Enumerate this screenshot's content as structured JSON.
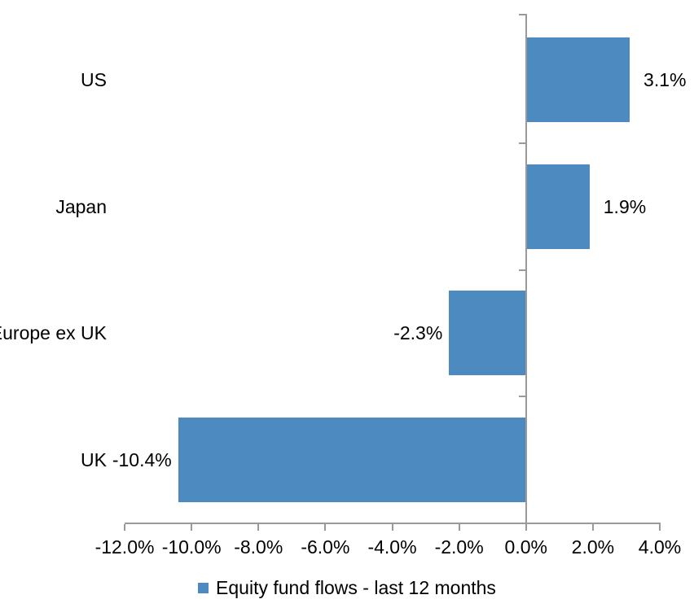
{
  "chart_data": {
    "type": "bar",
    "orientation": "horizontal",
    "title": "",
    "categories": [
      "US",
      "Japan",
      "Europe ex UK",
      "UK"
    ],
    "values": [
      3.1,
      1.9,
      -2.3,
      -10.4
    ],
    "data_labels": [
      "3.1%",
      "1.9%",
      "-2.3%",
      "-10.4%"
    ],
    "xlim": [
      -12,
      4
    ],
    "x_ticks": [
      -12,
      -10,
      -8,
      -6,
      -4,
      -2,
      0,
      2,
      4
    ],
    "x_tick_labels": [
      "-12.0%",
      "-10.0%",
      "-8.0%",
      "-6.0%",
      "-4.0%",
      "-2.0%",
      "0.0%",
      "2.0%",
      "4.0%"
    ],
    "grid": false,
    "legend_position": "bottom",
    "legend": [
      {
        "label": "Equity fund flows - last 12 months",
        "color": "#4d8abf"
      }
    ],
    "colors": {
      "bar": "#4d8abf",
      "axis": "#9a9a9a",
      "text": "#000000",
      "background": "#ffffff"
    }
  }
}
